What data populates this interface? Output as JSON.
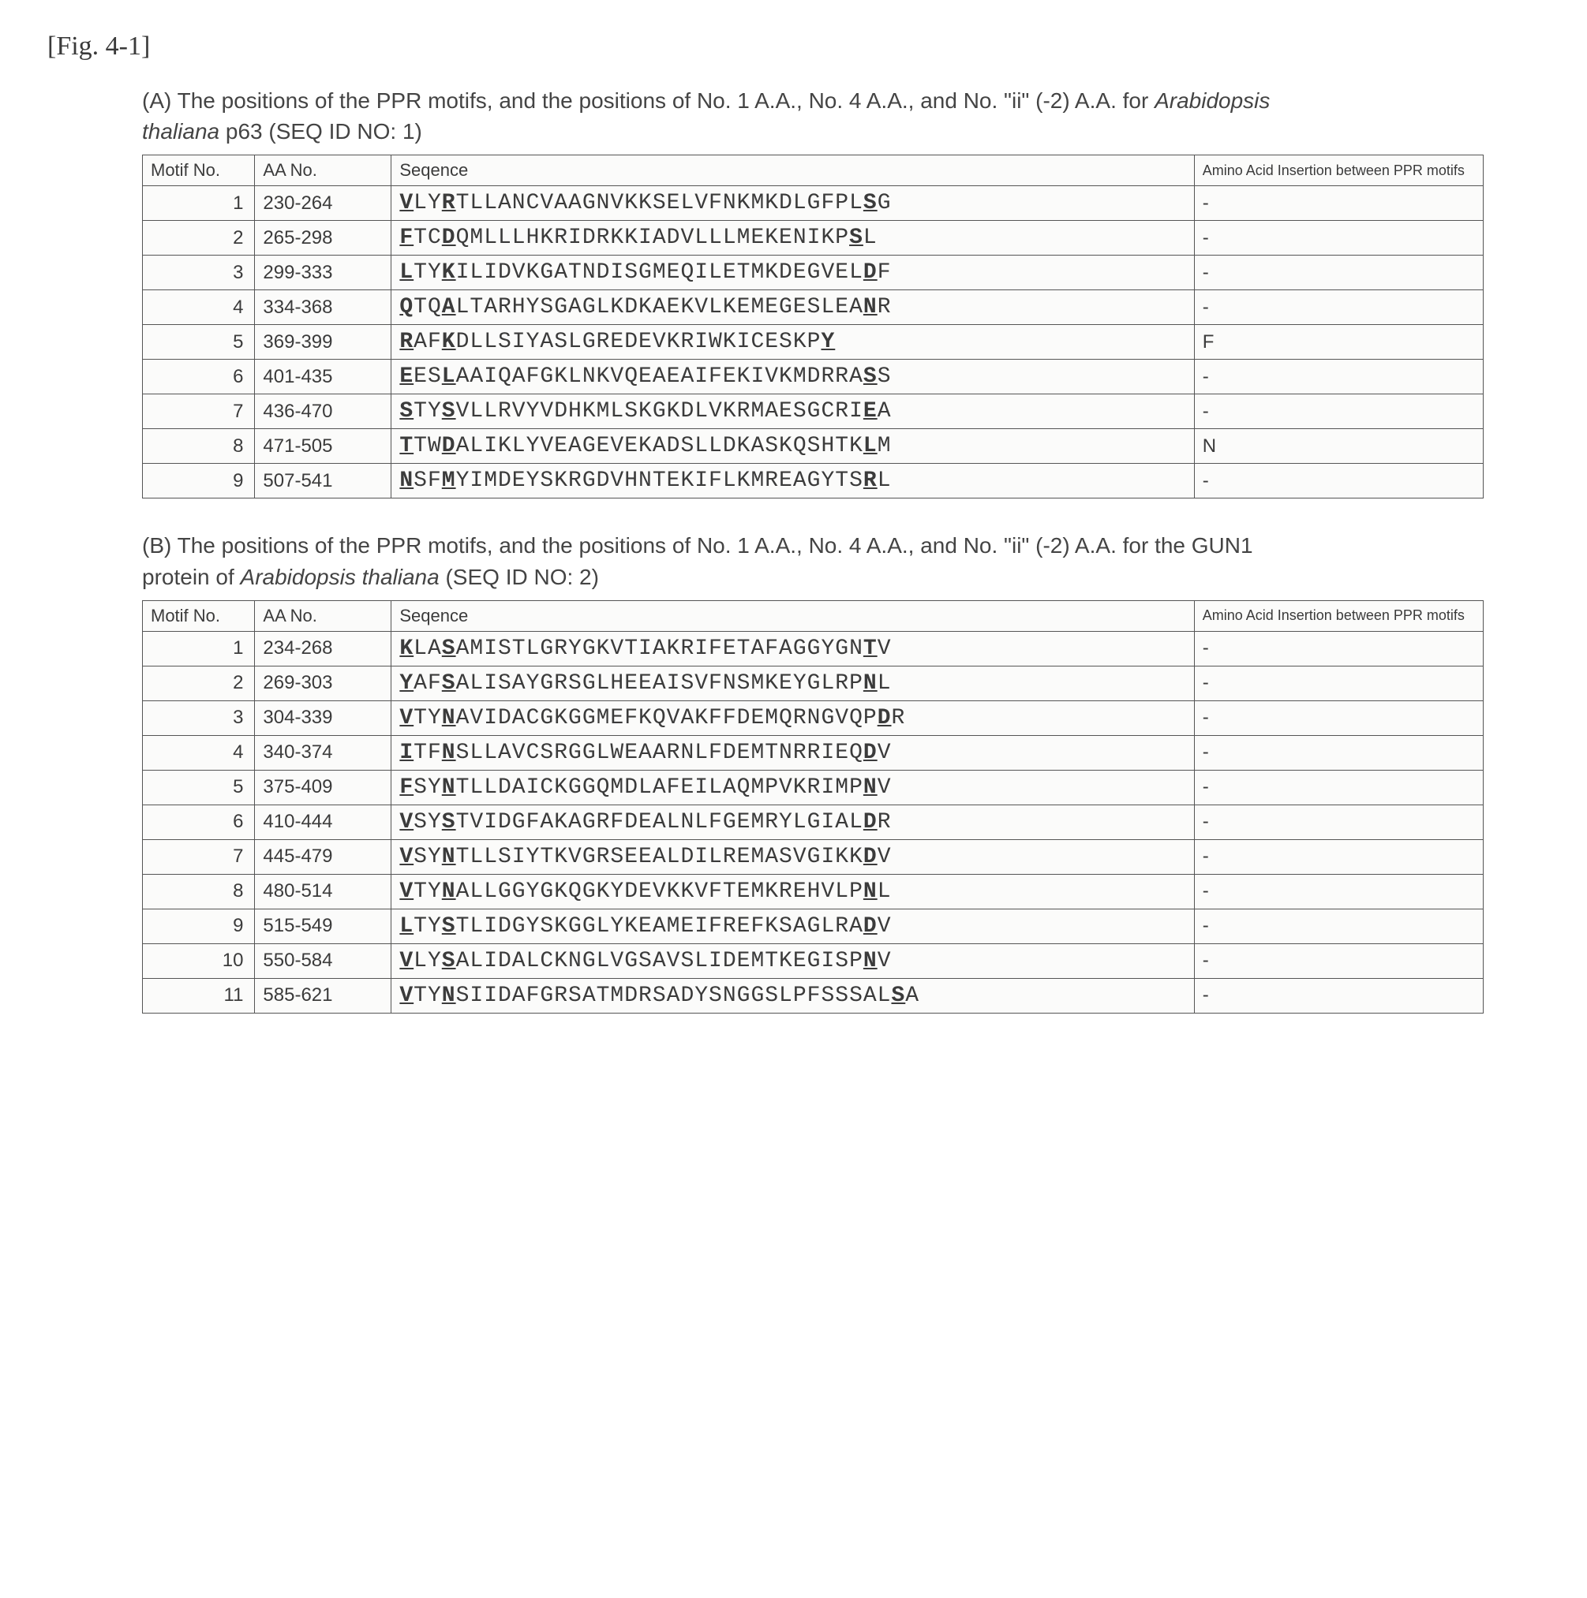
{
  "figLabel": "[Fig. 4-1]",
  "sectionA": {
    "caption_prefix": "(A) The positions of the PPR motifs, and the positions of No. 1 A.A., No. 4 A.A., and No. \"ii\" (-2) A.A. for ",
    "caption_italic": "Arabidopsis thaliana",
    "caption_suffix": " p63 (SEQ ID NO: 1)",
    "headers": {
      "motif": "Motif No.",
      "aa": "AA No.",
      "seq": "Seqence",
      "ins": "Amino Acid Insertion between PPR motifs"
    },
    "rows": [
      {
        "n": "1",
        "aa": "230-264",
        "seq": [
          [
            "ul",
            "V"
          ],
          [
            "",
            "LY"
          ],
          [
            "ul",
            "R"
          ],
          [
            "",
            "TLLANCVAAGNVKKSELVFNKMKDLGFPL"
          ],
          [
            "ul",
            "S"
          ],
          [
            "",
            "G"
          ]
        ],
        "ins": "-"
      },
      {
        "n": "2",
        "aa": "265-298",
        "seq": [
          [
            "ul",
            "F"
          ],
          [
            "",
            "TC"
          ],
          [
            "ul",
            "D"
          ],
          [
            "",
            "QMLLLHKRIDRKKIADVLLLMEKENIKP"
          ],
          [
            "ul",
            "S"
          ],
          [
            "",
            "L"
          ]
        ],
        "ins": "-"
      },
      {
        "n": "3",
        "aa": "299-333",
        "seq": [
          [
            "ul",
            "L"
          ],
          [
            "",
            "TY"
          ],
          [
            "ul",
            "K"
          ],
          [
            "",
            "ILIDVKGATNDISGMEQILETMKDEGVEL"
          ],
          [
            "ul",
            "D"
          ],
          [
            "",
            "F"
          ]
        ],
        "ins": "-"
      },
      {
        "n": "4",
        "aa": "334-368",
        "seq": [
          [
            "ul",
            "Q"
          ],
          [
            "",
            "TQ"
          ],
          [
            "ul",
            "A"
          ],
          [
            "",
            "LTARHYSGAGLKDKAEKVLKEMEGESLEA"
          ],
          [
            "ul",
            "N"
          ],
          [
            "",
            "R"
          ]
        ],
        "ins": "-"
      },
      {
        "n": "5",
        "aa": "369-399",
        "seq": [
          [
            "ul",
            "R"
          ],
          [
            "",
            "AF"
          ],
          [
            "ul",
            "K"
          ],
          [
            "",
            "DLLSIYASLGREDEVKRIWKICESKP"
          ],
          [
            "ul",
            "Y"
          ],
          [
            "",
            ""
          ]
        ],
        "ins": "F"
      },
      {
        "n": "6",
        "aa": "401-435",
        "seq": [
          [
            "ul",
            "E"
          ],
          [
            "",
            "ES"
          ],
          [
            "ul",
            "L"
          ],
          [
            "",
            "AAIQAFGKLNKVQEAEAIFEKIVKMDRRA"
          ],
          [
            "ul",
            "S"
          ],
          [
            "",
            "S"
          ]
        ],
        "ins": "-"
      },
      {
        "n": "7",
        "aa": "436-470",
        "seq": [
          [
            "ul",
            "S"
          ],
          [
            "",
            "TY"
          ],
          [
            "ul",
            "S"
          ],
          [
            "",
            "VLLRVYVDHKMLSKGKDLVKRMAESGCRI"
          ],
          [
            "ul",
            "E"
          ],
          [
            "",
            "A"
          ]
        ],
        "ins": "-"
      },
      {
        "n": "8",
        "aa": "471-505",
        "seq": [
          [
            "ul",
            "T"
          ],
          [
            "",
            "TW"
          ],
          [
            "ul",
            "D"
          ],
          [
            "",
            "ALIKLYVEAGEVEKADSLLDKASKQSHTK"
          ],
          [
            "ul",
            "L"
          ],
          [
            "",
            "M"
          ]
        ],
        "ins": "N"
      },
      {
        "n": "9",
        "aa": "507-541",
        "seq": [
          [
            "ul",
            "N"
          ],
          [
            "",
            "SF"
          ],
          [
            "ul",
            "M"
          ],
          [
            "",
            "YIMDEYSKRGDVHNTEKIFLKMREAGYTS"
          ],
          [
            "ul",
            "R"
          ],
          [
            "",
            "L"
          ]
        ],
        "ins": "-"
      }
    ]
  },
  "sectionB": {
    "caption_prefix": "(B) The positions of the PPR motifs, and the positions of No. 1 A.A., No. 4 A.A., and No. \"ii\" (-2) A.A. for the GUN1 protein of ",
    "caption_italic": "Arabidopsis thaliana",
    "caption_suffix": " (SEQ ID NO: 2)",
    "headers": {
      "motif": "Motif No.",
      "aa": "AA No.",
      "seq": "Seqence",
      "ins": "Amino Acid Insertion between PPR motifs"
    },
    "rows": [
      {
        "n": "1",
        "aa": "234-268",
        "seq": [
          [
            "ul",
            "K"
          ],
          [
            "",
            "LA"
          ],
          [
            "ul",
            "S"
          ],
          [
            "",
            "AMISTLGRYGKVTIAKRIFETAFAGGYGN"
          ],
          [
            "ul",
            "T"
          ],
          [
            "",
            "V"
          ]
        ],
        "ins": "-"
      },
      {
        "n": "2",
        "aa": "269-303",
        "seq": [
          [
            "ul",
            "Y"
          ],
          [
            "",
            "AF"
          ],
          [
            "ul",
            "S"
          ],
          [
            "",
            "ALISAYGRSGLHEEAISVFNSMKEYGLRP"
          ],
          [
            "ul",
            "N"
          ],
          [
            "",
            "L"
          ]
        ],
        "ins": "-"
      },
      {
        "n": "3",
        "aa": "304-339",
        "seq": [
          [
            "ul",
            "V"
          ],
          [
            "",
            "TY"
          ],
          [
            "ul",
            "N"
          ],
          [
            "",
            "AVIDACGKGGMEFKQVAKFFDEMQRNGVQP"
          ],
          [
            "ul",
            "D"
          ],
          [
            "",
            "R"
          ]
        ],
        "ins": "-"
      },
      {
        "n": "4",
        "aa": "340-374",
        "seq": [
          [
            "ul",
            "I"
          ],
          [
            "",
            "TF"
          ],
          [
            "ul",
            "N"
          ],
          [
            "",
            "SLLAVCSRGGLWEAARNLFDEMTNRRIEQ"
          ],
          [
            "ul",
            "D"
          ],
          [
            "",
            "V"
          ]
        ],
        "ins": "-"
      },
      {
        "n": "5",
        "aa": "375-409",
        "seq": [
          [
            "ul",
            "F"
          ],
          [
            "",
            "SY"
          ],
          [
            "ul",
            "N"
          ],
          [
            "",
            "TLLDAICKGGQMDLAFEILAQMPVKRIMP"
          ],
          [
            "ul",
            "N"
          ],
          [
            "",
            "V"
          ]
        ],
        "ins": "-"
      },
      {
        "n": "6",
        "aa": "410-444",
        "seq": [
          [
            "ul",
            "V"
          ],
          [
            "",
            "SY"
          ],
          [
            "ul",
            "S"
          ],
          [
            "",
            "TVIDGFAKAGRFDEALNLFGEMRYLGIAL"
          ],
          [
            "ul",
            "D"
          ],
          [
            "",
            "R"
          ]
        ],
        "ins": "-"
      },
      {
        "n": "7",
        "aa": "445-479",
        "seq": [
          [
            "ul",
            "V"
          ],
          [
            "",
            "SY"
          ],
          [
            "ul",
            "N"
          ],
          [
            "",
            "TLLSIYTKVGRSEEALDILREMASVGIKK"
          ],
          [
            "ul",
            "D"
          ],
          [
            "",
            "V"
          ]
        ],
        "ins": "-"
      },
      {
        "n": "8",
        "aa": "480-514",
        "seq": [
          [
            "ul",
            "V"
          ],
          [
            "",
            "TY"
          ],
          [
            "ul",
            "N"
          ],
          [
            "",
            "ALLGGYGKQGKYDEVKKVFTEMKREHVLP"
          ],
          [
            "ul",
            "N"
          ],
          [
            "",
            "L"
          ]
        ],
        "ins": "-"
      },
      {
        "n": "9",
        "aa": "515-549",
        "seq": [
          [
            "ul",
            "L"
          ],
          [
            "",
            "TY"
          ],
          [
            "ul",
            "S"
          ],
          [
            "",
            "TLIDGYSKGGLYKEAMEIFREFKSAGLRA"
          ],
          [
            "ul",
            "D"
          ],
          [
            "",
            "V"
          ]
        ],
        "ins": "-"
      },
      {
        "n": "10",
        "aa": "550-584",
        "seq": [
          [
            "ul",
            "V"
          ],
          [
            "",
            "LY"
          ],
          [
            "ul",
            "S"
          ],
          [
            "",
            "ALIDALCKNGLVGSAVSLIDEMTKEGISP"
          ],
          [
            "ul",
            "N"
          ],
          [
            "",
            "V"
          ]
        ],
        "ins": "-"
      },
      {
        "n": "11",
        "aa": "585-621",
        "seq": [
          [
            "ul",
            "V"
          ],
          [
            "",
            "TY"
          ],
          [
            "ul",
            "N"
          ],
          [
            "",
            "SIIDAFGRSATMDRSADYSNGGSLPFSSSAL"
          ],
          [
            "ul",
            "S"
          ],
          [
            "",
            "A"
          ]
        ],
        "ins": "-"
      }
    ]
  }
}
